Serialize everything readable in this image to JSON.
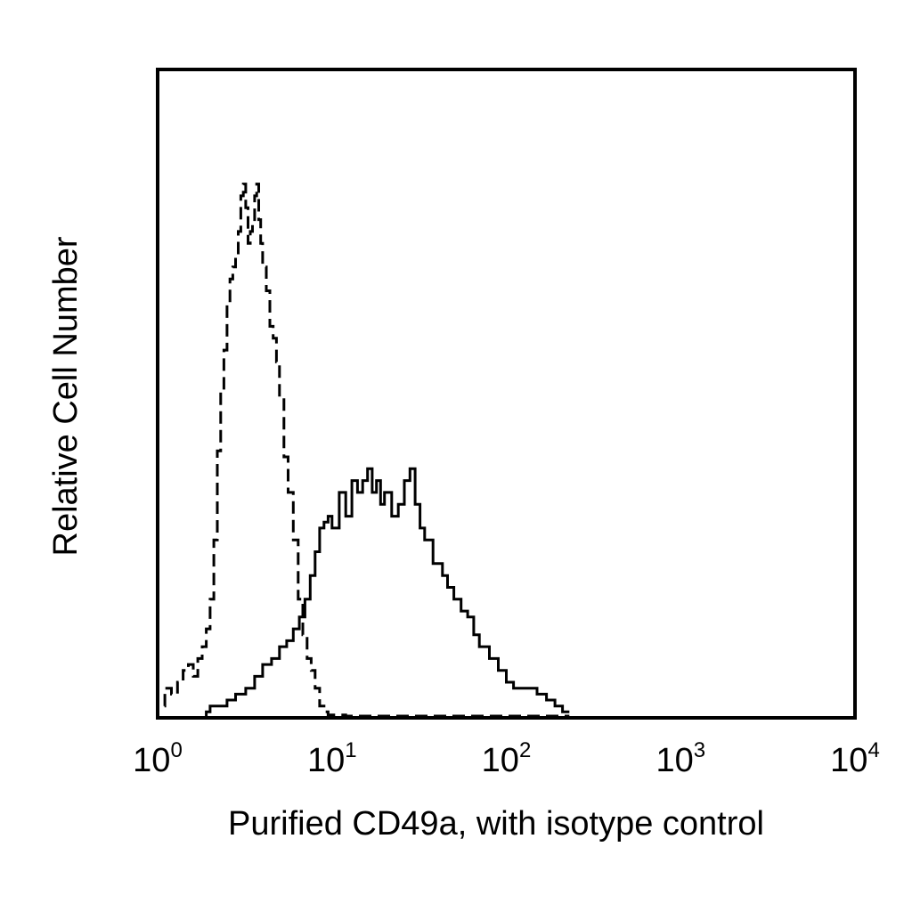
{
  "chart_data": {
    "type": "line",
    "xscale": "log",
    "xlim": [
      1,
      10000
    ],
    "ylim": [
      0,
      100
    ],
    "grid": false,
    "legend": "none",
    "xlabel": "Purified CD49a, with isotype control",
    "ylabel": "Relative Cell Number",
    "x_ticks": [
      {
        "base": "10",
        "exp": "0",
        "value": 1
      },
      {
        "base": "10",
        "exp": "1",
        "value": 10
      },
      {
        "base": "10",
        "exp": "2",
        "value": 100
      },
      {
        "base": "10",
        "exp": "3",
        "value": 1000
      },
      {
        "base": "10",
        "exp": "4",
        "value": 10000
      }
    ],
    "series": [
      {
        "style": "dashed",
        "color": "#000000",
        "x": [
          1.0,
          1.1,
          1.2,
          1.3,
          1.4,
          1.5,
          1.6,
          1.7,
          1.8,
          1.9,
          2.0,
          2.1,
          2.2,
          2.3,
          2.4,
          2.5,
          2.6,
          2.7,
          2.8,
          2.9,
          3.0,
          3.1,
          3.2,
          3.3,
          3.4,
          3.5,
          3.6,
          3.7,
          3.8,
          3.9,
          4.0,
          4.2,
          4.4,
          4.6,
          4.8,
          5.0,
          5.3,
          5.6,
          6.0,
          6.4,
          6.8,
          7.2,
          7.6,
          8.0,
          8.5,
          9.0,
          9.5,
          10,
          12,
          15,
          20,
          30,
          50,
          100,
          200,
          230
        ],
        "y": [
          2,
          5,
          4,
          6,
          8,
          9,
          7,
          10,
          12,
          15,
          20,
          30,
          45,
          55,
          62,
          70,
          74,
          76,
          78,
          82,
          88,
          90,
          86,
          80,
          82,
          84,
          88,
          90,
          84,
          80,
          76,
          72,
          66,
          64,
          60,
          54,
          44,
          38,
          30,
          20,
          14,
          10,
          8,
          5,
          2,
          1,
          0.5,
          0.5,
          0.3,
          0.3,
          0.3,
          0.3,
          0.3,
          0.3,
          0.3,
          0.3
        ]
      },
      {
        "style": "solid",
        "color": "#000000",
        "x": [
          1.9,
          2.0,
          2.2,
          2.5,
          2.8,
          3.2,
          3.6,
          4.0,
          4.5,
          5.0,
          5.5,
          6.0,
          6.5,
          7.0,
          7.5,
          8.0,
          8.5,
          9.0,
          9.5,
          10,
          11,
          12,
          13,
          14,
          15,
          16,
          17,
          18,
          19,
          20,
          22,
          24,
          26,
          28,
          30,
          32,
          34,
          36,
          38,
          40,
          43,
          46,
          50,
          55,
          60,
          65,
          70,
          80,
          90,
          100,
          110,
          120,
          130,
          140,
          150,
          170,
          190,
          210,
          230
        ],
        "y": [
          1,
          2,
          2,
          3,
          4,
          5,
          7,
          9,
          10,
          12,
          13,
          15,
          17,
          20,
          24,
          28,
          32,
          33,
          34,
          32,
          38,
          34,
          40,
          38,
          40,
          42,
          38,
          40,
          36,
          38,
          34,
          36,
          40,
          42,
          36,
          32,
          30,
          30,
          26,
          26,
          24,
          22,
          20,
          18,
          17,
          14,
          12,
          10,
          8,
          6,
          5,
          5,
          5,
          5,
          4,
          3,
          2,
          1,
          1
        ]
      }
    ]
  }
}
